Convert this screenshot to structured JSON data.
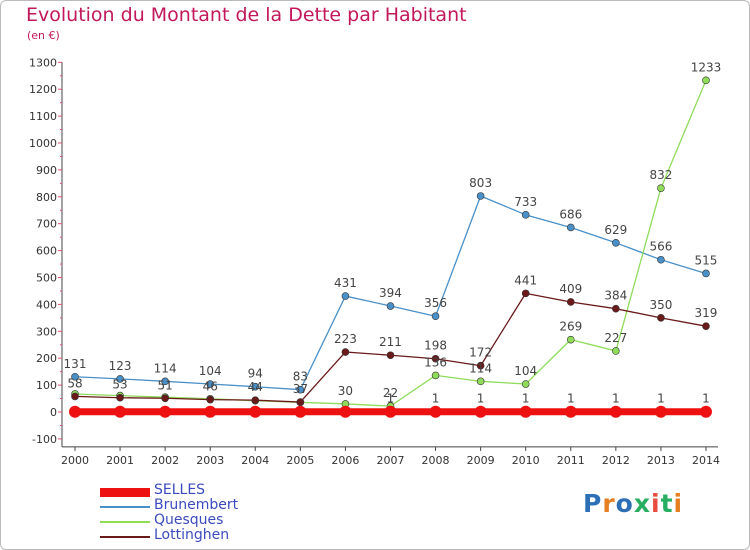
{
  "title": "Evolution du Montant de la Dette par Habitant",
  "subtitle": "(en €)",
  "logo": {
    "text": "Proxiti",
    "letter_colors": [
      "#2d6fb7",
      "#e67e22",
      "#2d6fb7",
      "#27ae60",
      "#e74c3c",
      "#27ae60",
      "#e67e22"
    ]
  },
  "chart_data": {
    "type": "line",
    "x": [
      "2000",
      "2001",
      "2002",
      "2003",
      "2004",
      "2005",
      "2006",
      "2007",
      "2008",
      "2009",
      "2010",
      "2011",
      "2012",
      "2013",
      "2014"
    ],
    "ylim": [
      -100,
      1300
    ],
    "yticks": [
      "-100",
      "0",
      "100",
      "200",
      "300",
      "400",
      "500",
      "600",
      "700",
      "800",
      "900",
      "1000",
      "1100",
      "1200",
      "1300"
    ],
    "grid": false,
    "legend_position": "bottom-left",
    "series": [
      {
        "name": "SELLES",
        "color": "#ee1111",
        "values": [
          1,
          1,
          1,
          1,
          1,
          1,
          1,
          1,
          1,
          1,
          1,
          1,
          1,
          1,
          1
        ],
        "labels": [
          "",
          "",
          "",
          "",
          "",
          "",
          "",
          "1",
          "1",
          "1",
          "1",
          "1",
          "1",
          "1",
          "1"
        ]
      },
      {
        "name": "Brunembert",
        "color": "#4a90c8",
        "values": [
          131,
          123,
          114,
          104,
          94,
          83,
          431,
          394,
          356,
          803,
          733,
          686,
          629,
          566,
          515
        ],
        "labels": [
          "131",
          "123",
          "114",
          "104",
          "94",
          "83",
          "431",
          "394",
          "356",
          "803",
          "733",
          "686",
          "629",
          "566",
          "515"
        ]
      },
      {
        "name": "Quesques",
        "color": "#8fdb5a",
        "values": [
          67,
          61,
          55,
          49,
          42,
          36,
          30,
          22,
          136,
          114,
          104,
          269,
          227,
          832,
          1233
        ],
        "labels": [
          "",
          "",
          "",
          "",
          "",
          "",
          "30",
          "22",
          "136",
          "114",
          "104",
          "269",
          "227",
          "832",
          "1233"
        ]
      },
      {
        "name": "Lottinghen",
        "color": "#6b1a1a",
        "values": [
          58,
          53,
          51,
          46,
          44,
          37,
          223,
          211,
          198,
          172,
          441,
          409,
          384,
          350,
          319
        ],
        "labels": [
          "58",
          "53",
          "51",
          "46",
          "44",
          "37",
          "223",
          "211",
          "198",
          "172",
          "441",
          "409",
          "384",
          "350",
          "319"
        ]
      }
    ]
  }
}
